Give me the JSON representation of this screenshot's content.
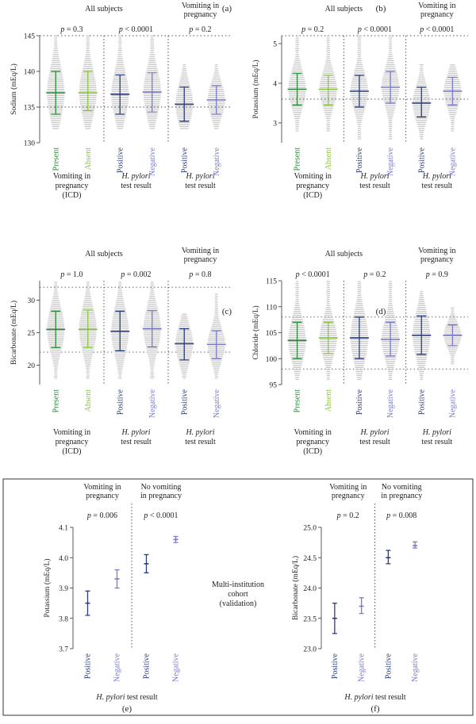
{
  "chart_data": [
    {
      "panel": "(a)",
      "type": "scatter",
      "ylabel": "Sodium (mEq/L)",
      "ylim": [
        130,
        145
      ],
      "yticks": [
        130,
        135,
        140,
        145
      ],
      "ref_lines": [
        135,
        145
      ],
      "groups": [
        {
          "header": "All subjects",
          "p": "p = 0.3",
          "xlabel": [
            "Vomiting in",
            "pregnancy",
            "(ICD)"
          ],
          "cats": [
            {
              "name": "Present",
              "color": "#2e8b3a",
              "mean": 137,
              "lo": 134,
              "hi": 140,
              "range": [
                132,
                145
              ]
            },
            {
              "name": "Absent",
              "color": "#8cc63f",
              "mean": 137,
              "lo": 134.5,
              "hi": 140,
              "range": [
                132,
                145
              ]
            }
          ]
        },
        {
          "header": "",
          "p": "p < 0.0001",
          "xlabel": [
            "H. pylori",
            "test result"
          ],
          "cats": [
            {
              "name": "Positive",
              "color": "#2c3e7a",
              "mean": 136.8,
              "lo": 134,
              "hi": 139.5,
              "range": [
                132,
                145
              ]
            },
            {
              "name": "Negative",
              "color": "#7b7bc8",
              "mean": 137.1,
              "lo": 134.3,
              "hi": 139.8,
              "range": [
                132,
                145
              ]
            }
          ]
        },
        {
          "header": "Vomiting in pregnancy",
          "p": "p = 0.2",
          "xlabel": [
            "H. pylori",
            "test result"
          ],
          "cats": [
            {
              "name": "Positive",
              "color": "#2c3e7a",
              "mean": 135.4,
              "lo": 133,
              "hi": 137.8,
              "range": [
                132,
                141
              ]
            },
            {
              "name": "Negative",
              "color": "#7b7bc8",
              "mean": 136,
              "lo": 134,
              "hi": 138,
              "range": [
                132,
                141
              ]
            }
          ]
        }
      ]
    },
    {
      "panel": "(b)",
      "type": "scatter",
      "ylabel": "Potassium (mEq/L)",
      "ylim": [
        2.5,
        5.2
      ],
      "yticks": [
        3,
        4,
        5
      ],
      "ref_lines": [
        3.6,
        5.2
      ],
      "groups": [
        {
          "header": "All subjects",
          "p": "p = 0.2",
          "xlabel": [
            "Vomiting in",
            "pregnancy",
            "(ICD)"
          ],
          "cats": [
            {
              "name": "Present",
              "color": "#2e8b3a",
              "mean": 3.85,
              "lo": 3.45,
              "hi": 4.25,
              "range": [
                2.8,
                5.2
              ]
            },
            {
              "name": "Absent",
              "color": "#8cc63f",
              "mean": 3.85,
              "lo": 3.45,
              "hi": 4.2,
              "range": [
                2.8,
                5.2
              ]
            }
          ]
        },
        {
          "header": "",
          "p": "p < 0.0001",
          "xlabel": [
            "H. pylori",
            "test result"
          ],
          "cats": [
            {
              "name": "Positive",
              "color": "#2c3e7a",
              "mean": 3.8,
              "lo": 3.4,
              "hi": 4.2,
              "range": [
                2.6,
                5.2
              ]
            },
            {
              "name": "Negative",
              "color": "#7b7bc8",
              "mean": 3.9,
              "lo": 3.5,
              "hi": 4.3,
              "range": [
                2.6,
                5.2
              ]
            }
          ]
        },
        {
          "header": "Vomiting in pregnancy",
          "p": "p < 0.0001",
          "xlabel": [
            "H. pylori",
            "test result"
          ],
          "cats": [
            {
              "name": "Positive",
              "color": "#2c3e7a",
              "mean": 3.5,
              "lo": 3.15,
              "hi": 3.9,
              "range": [
                2.6,
                4.5
              ]
            },
            {
              "name": "Negative",
              "color": "#7b7bc8",
              "mean": 3.8,
              "lo": 3.45,
              "hi": 4.15,
              "range": [
                2.8,
                4.5
              ]
            }
          ]
        }
      ]
    },
    {
      "panel": "(c)",
      "type": "scatter",
      "ylabel": "Bicarbonate (mEq/L)",
      "ylim": [
        17,
        33
      ],
      "yticks": [
        20,
        25,
        30
      ],
      "ref_lines": [
        22,
        32
      ],
      "groups": [
        {
          "header": "All subjects",
          "p": "p = 1.0",
          "xlabel": [
            "Vomiting in",
            "pregnancy",
            "(ICD)"
          ],
          "cats": [
            {
              "name": "Present",
              "color": "#2e8b3a",
              "mean": 25.5,
              "lo": 22.7,
              "hi": 28.3,
              "range": [
                18,
                33
              ]
            },
            {
              "name": "Absent",
              "color": "#8cc63f",
              "mean": 25.5,
              "lo": 22.7,
              "hi": 28.5,
              "range": [
                18,
                33
              ]
            }
          ]
        },
        {
          "header": "",
          "p": "p = 0.002",
          "xlabel": [
            "H. pylori",
            "test result"
          ],
          "cats": [
            {
              "name": "Positive",
              "color": "#2c3e7a",
              "mean": 25.2,
              "lo": 22.2,
              "hi": 28.3,
              "range": [
                18,
                33
              ]
            },
            {
              "name": "Negative",
              "color": "#7b7bc8",
              "mean": 25.6,
              "lo": 22.8,
              "hi": 28.4,
              "range": [
                18,
                33
              ]
            }
          ]
        },
        {
          "header": "Vomiting in pregnancy",
          "p": "p = 0.8",
          "xlabel": [
            "H. pylori",
            "test result"
          ],
          "cats": [
            {
              "name": "Positive",
              "color": "#2c3e7a",
              "mean": 23.3,
              "lo": 20.8,
              "hi": 25.6,
              "range": [
                18,
                28
              ]
            },
            {
              "name": "Negative",
              "color": "#7b7bc8",
              "mean": 23.2,
              "lo": 21,
              "hi": 25.3,
              "range": [
                18,
                31
              ]
            }
          ]
        }
      ]
    },
    {
      "panel": "(d)",
      "type": "scatter",
      "ylabel": "Chloride (mEq/L)",
      "ylim": [
        95,
        115
      ],
      "yticks": [
        95,
        100,
        105,
        110,
        115
      ],
      "ref_lines": [
        98,
        108
      ],
      "groups": [
        {
          "header": "All subjects",
          "p": "p < 0.0001",
          "xlabel": [
            "Vomiting in",
            "pregnancy",
            "(ICD)"
          ],
          "cats": [
            {
              "name": "Present",
              "color": "#2e8b3a",
              "mean": 103.5,
              "lo": 100,
              "hi": 107,
              "range": [
                96,
                115
              ]
            },
            {
              "name": "Absent",
              "color": "#8cc63f",
              "mean": 104,
              "lo": 101,
              "hi": 107,
              "range": [
                96,
                115
              ]
            }
          ]
        },
        {
          "header": "",
          "p": "p = 0.2",
          "xlabel": [
            "H. pylori",
            "test result"
          ],
          "cats": [
            {
              "name": "Positive",
              "color": "#2c3e7a",
              "mean": 104,
              "lo": 100,
              "hi": 108,
              "range": [
                96,
                115
              ]
            },
            {
              "name": "Negative",
              "color": "#7b7bc8",
              "mean": 103.7,
              "lo": 100.5,
              "hi": 107,
              "range": [
                96,
                115
              ]
            }
          ]
        },
        {
          "header": "Vomiting in pregnancy",
          "p": "p = 0.9",
          "xlabel": [
            "H. pylori",
            "test result"
          ],
          "cats": [
            {
              "name": "Positive",
              "color": "#2c3e7a",
              "mean": 104.5,
              "lo": 100.8,
              "hi": 108.2,
              "range": [
                96,
                113
              ]
            },
            {
              "name": "Negative",
              "color": "#7b7bc8",
              "mean": 104.5,
              "lo": 102.5,
              "hi": 106.5,
              "range": [
                99,
                110
              ]
            }
          ]
        }
      ]
    },
    {
      "panel": "(e)",
      "type": "scatter",
      "ylabel": "Potassium (mEq/L)",
      "ylim": [
        3.7,
        4.1
      ],
      "yticks": [
        3.7,
        3.8,
        3.9,
        4.0,
        4.1
      ],
      "xlabel": "H. pylori test result",
      "groups": [
        {
          "header": [
            "Vomiting in",
            "pregnancy"
          ],
          "p": "p = 0.006",
          "cats": [
            {
              "name": "Positive",
              "color": "#2c3e7a",
              "mean": 3.85,
              "lo": 3.81,
              "hi": 3.89
            },
            {
              "name": "Negative",
              "color": "#7b7bc8",
              "mean": 3.93,
              "lo": 3.9,
              "hi": 3.96
            }
          ]
        },
        {
          "header": [
            "No vomiting",
            "in pregnancy"
          ],
          "p": "p < 0.0001",
          "cats": [
            {
              "name": "Positive",
              "color": "#2c3e7a",
              "mean": 3.98,
              "lo": 3.95,
              "hi": 4.01
            },
            {
              "name": "Negative",
              "color": "#7b7bc8",
              "mean": 4.06,
              "lo": 4.05,
              "hi": 4.07
            }
          ]
        }
      ]
    },
    {
      "panel": "(f)",
      "type": "scatter",
      "ylabel": "Bicarbonate (mEq/L)",
      "ylim": [
        23.0,
        25.0
      ],
      "yticks": [
        23.0,
        23.5,
        24.0,
        24.5,
        25.0
      ],
      "xlabel": "H. pylori test result",
      "groups": [
        {
          "header": [
            "Vomiting in",
            "pregnancy"
          ],
          "p": "p = 0.2",
          "cats": [
            {
              "name": "Positive",
              "color": "#2c3e7a",
              "mean": 23.5,
              "lo": 23.25,
              "hi": 23.75
            },
            {
              "name": "Negative",
              "color": "#7b7bc8",
              "mean": 23.7,
              "lo": 23.58,
              "hi": 23.84
            }
          ]
        },
        {
          "header": [
            "No vomiting",
            "in pregnancy"
          ],
          "p": "p = 0.008",
          "cats": [
            {
              "name": "Positive",
              "color": "#2c3e7a",
              "mean": 24.5,
              "lo": 24.4,
              "hi": 24.62
            },
            {
              "name": "Negative",
              "color": "#7b7bc8",
              "mean": 24.7,
              "lo": 24.66,
              "hi": 24.76
            }
          ]
        }
      ]
    }
  ],
  "validation_note": [
    "Multi-institution",
    "cohort",
    "(validation)"
  ]
}
